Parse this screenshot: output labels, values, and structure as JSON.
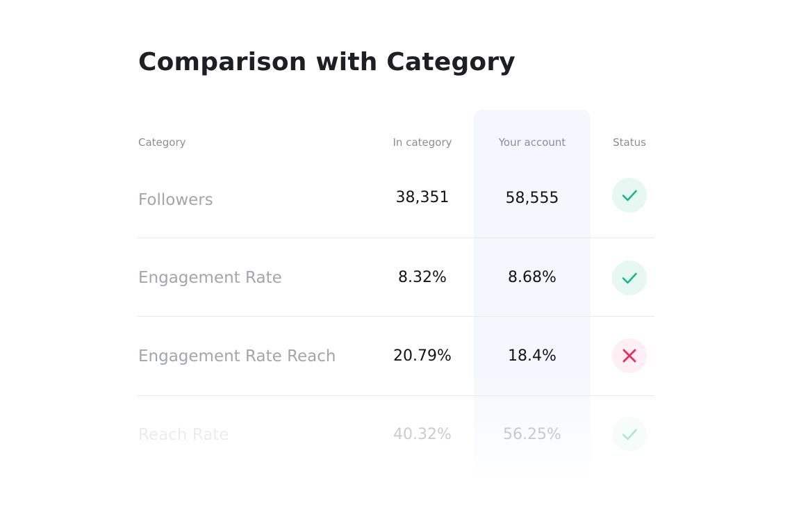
{
  "title": "Comparison with Category",
  "headers": {
    "category": "Category",
    "in_category": "In category",
    "your_account": "Your account",
    "status": "Status"
  },
  "rows": [
    {
      "label": "Followers",
      "in_category": "38,351",
      "your_account": "58,555",
      "status": "ok",
      "status_icon": "check-icon"
    },
    {
      "label": "Engagement Rate",
      "in_category": "8.32%",
      "your_account": "8.68%",
      "status": "ok",
      "status_icon": "check-icon"
    },
    {
      "label": "Engagement Rate Reach",
      "in_category": "20.79%",
      "your_account": "18.4%",
      "status": "bad",
      "status_icon": "close-icon"
    },
    {
      "label": "Reach Rate",
      "in_category": "40.32%",
      "your_account": "56.25%",
      "status": "ok",
      "status_icon": "check-icon"
    }
  ],
  "colors": {
    "ok": "#14b886",
    "bad": "#f0285a",
    "highlight_column": "#f4f7fe"
  }
}
